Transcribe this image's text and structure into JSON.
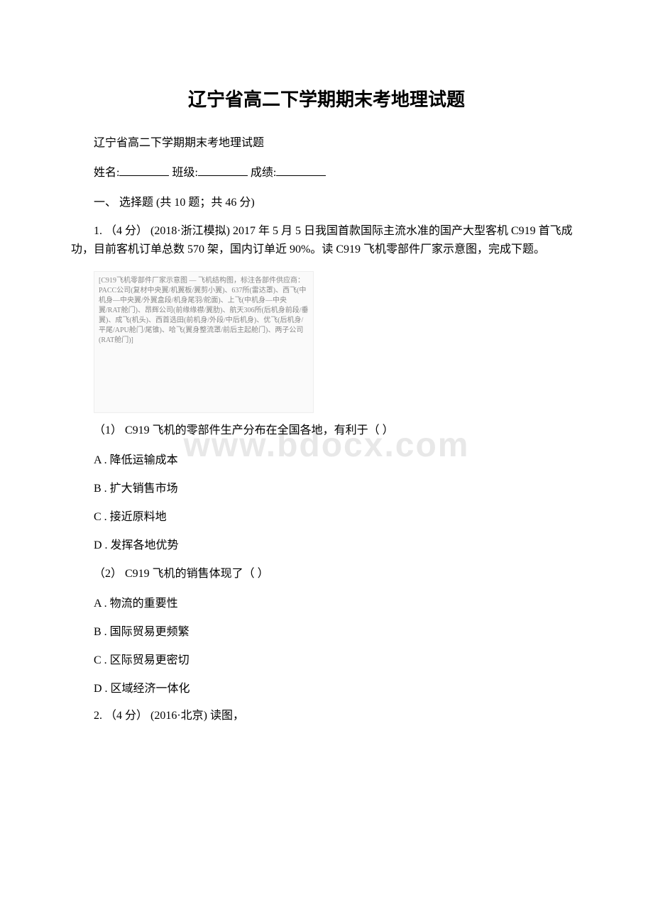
{
  "title": "辽宁省高二下学期期末考地理试题",
  "subtitle": "辽宁省高二下学期期末考地理试题",
  "form": {
    "name_label": "姓名:",
    "class_label": "班级:",
    "score_label": "成绩:"
  },
  "section1": {
    "header": "一、 选择题 (共 10 题；共 46 分)"
  },
  "q1": {
    "stem": "1. （4 分） (2018·浙江模拟) 2017 年 5 月 5 日我国首款国际主流水准的国产大型客机 C919 首飞成功，目前客机订单总数 570 架，国内订单近 90%。读 C919 飞机零部件厂家示意图，完成下题。",
    "diagram_note": "[C919飞机零部件厂家示意图 — 飞机结构图，标注各部件供应商：PACC公司(复材中央翼/机翼板/翼剪小翼)、637所(雷达罩)、西飞(中机身—中央翼/外翼盒段/机身尾羽/舵面)、上飞(中机身—中央翼/RAT舱门)、昂辉公司(前缘缘襟/翼肋)、航天306所(后机身前段/垂翼)、成飞(机头)、西首选田(前机身/外段/中后机身)、优飞(后机身/平尾/APU舱门/尾锥)、哈飞(翼身整流罩/前后主起舱门)、两子公司(RAT舱门)]",
    "sub1": "（1） C919 飞机的零部件生产分布在全国各地，有利于（ ）",
    "sub1_options": {
      "A": "A . 降低运输成本",
      "B": "B . 扩大销售市场",
      "C": "C . 接近原料地",
      "D": "D . 发挥各地优势"
    },
    "sub2": "（2） C919 飞机的销售体现了（ ）",
    "sub2_options": {
      "A": "A . 物流的重要性",
      "B": "B . 国际贸易更频繁",
      "C": "C . 区际贸易更密切",
      "D": "D . 区域经济一体化"
    }
  },
  "q2": {
    "stem": "2. （4 分） (2016·北京) 读图，"
  },
  "watermark_text": "www.bdocx.com",
  "colors": {
    "text": "#000000",
    "background": "#ffffff",
    "watermark": "#e8e8e8"
  },
  "typography": {
    "title_fontsize": 26,
    "body_fontsize": 16,
    "watermark_fontsize": 48
  }
}
